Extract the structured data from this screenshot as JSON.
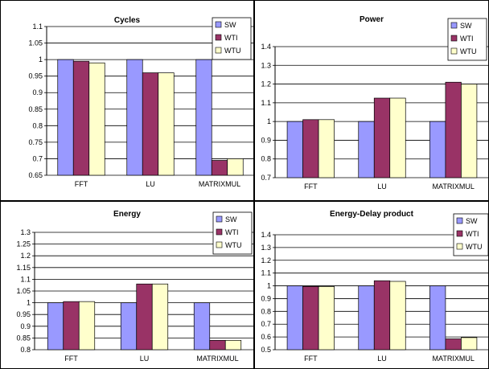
{
  "colors": {
    "SW": "#9999ff",
    "WTI": "#993366",
    "WTU": "#ffffcc",
    "grid": "#000000",
    "panel_border": "#000000",
    "background": "#ffffff"
  },
  "chart_data": [
    {
      "type": "bar",
      "title": "Cycles",
      "categories": [
        "FFT",
        "LU",
        "MATRIXMUL"
      ],
      "series": [
        {
          "name": "SW",
          "values": [
            1.0,
            1.0,
            1.0
          ]
        },
        {
          "name": "WTI",
          "values": [
            0.995,
            0.96,
            0.695
          ]
        },
        {
          "name": "WTU",
          "values": [
            0.99,
            0.96,
            0.7
          ]
        }
      ],
      "ylim": [
        0.65,
        1.1
      ],
      "yticks": [
        "0.65",
        "0.7",
        "0.75",
        "0.8",
        "0.85",
        "0.9",
        "0.95",
        "1",
        "1.05",
        "1.1"
      ],
      "xlabel": "",
      "ylabel": "",
      "grid": true,
      "legend": "top-right"
    },
    {
      "type": "bar",
      "title": "Power",
      "categories": [
        "FFT",
        "LU",
        "MATRIXMUL"
      ],
      "series": [
        {
          "name": "SW",
          "values": [
            1.0,
            1.0,
            1.0
          ]
        },
        {
          "name": "WTI",
          "values": [
            1.01,
            1.125,
            1.21
          ]
        },
        {
          "name": "WTU",
          "values": [
            1.01,
            1.125,
            1.2
          ]
        }
      ],
      "ylim": [
        0.7,
        1.4
      ],
      "yticks": [
        "0.7",
        "0.8",
        "0.9",
        "1",
        "1.1",
        "1.2",
        "1.3",
        "1.4"
      ],
      "xlabel": "",
      "ylabel": "",
      "grid": true,
      "legend": "top-right"
    },
    {
      "type": "bar",
      "title": "Energy",
      "categories": [
        "FFT",
        "LU",
        "MATRIXMUL"
      ],
      "series": [
        {
          "name": "SW",
          "values": [
            1.0,
            1.0,
            1.0
          ]
        },
        {
          "name": "WTI",
          "values": [
            1.005,
            1.08,
            0.84
          ]
        },
        {
          "name": "WTU",
          "values": [
            1.005,
            1.08,
            0.84
          ]
        }
      ],
      "ylim": [
        0.8,
        1.3
      ],
      "yticks": [
        "0.8",
        "0.85",
        "0.9",
        "0.95",
        "1",
        "1.05",
        "1.1",
        "1.15",
        "1.2",
        "1.25",
        "1.3"
      ],
      "xlabel": "",
      "ylabel": "",
      "grid": true,
      "legend": "top-right"
    },
    {
      "type": "bar",
      "title": "Energy-Delay product",
      "categories": [
        "FFT",
        "LU",
        "MATRIXMUL"
      ],
      "series": [
        {
          "name": "SW",
          "values": [
            1.0,
            1.0,
            1.0
          ]
        },
        {
          "name": "WTI",
          "values": [
            0.995,
            1.04,
            0.585
          ]
        },
        {
          "name": "WTU",
          "values": [
            0.995,
            1.035,
            0.595
          ]
        }
      ],
      "ylim": [
        0.5,
        1.4
      ],
      "yticks": [
        "0.5",
        "0.6",
        "0.7",
        "0.8",
        "0.9",
        "1",
        "1.1",
        "1.2",
        "1.3",
        "1.4"
      ],
      "xlabel": "",
      "ylabel": "",
      "grid": true,
      "legend": "top-right"
    }
  ]
}
